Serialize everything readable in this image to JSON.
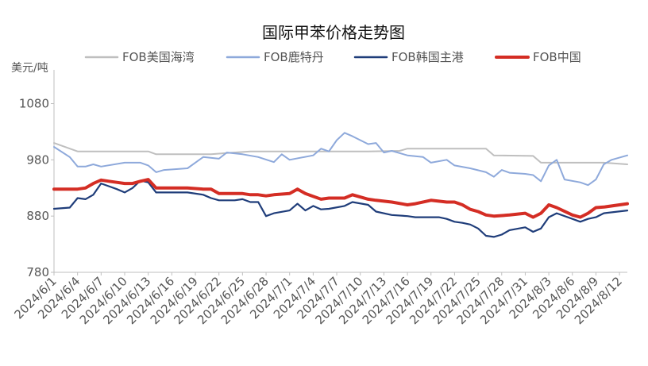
{
  "chart_data": {
    "type": "line",
    "title": "国际甲苯价格走势图",
    "ylabel": "美元/吨",
    "xlabel": "",
    "ylim": [
      780,
      1140
    ],
    "yticks": [
      780,
      880,
      980,
      1080
    ],
    "grid": false,
    "legend_position": "top",
    "x_tick_labels": [
      "2024/6/1",
      "2024/6/4",
      "2024/6/7",
      "2024/6/10",
      "2024/6/13",
      "2024/6/16",
      "2024/6/19",
      "2024/6/22",
      "2024/6/25",
      "2024/6/28",
      "2024/7/1",
      "2024/7/4",
      "2024/7/7",
      "2024/7/10",
      "2024/7/13",
      "2024/7/16",
      "2024/7/19",
      "2024/7/22",
      "2024/7/25",
      "2024/7/28",
      "2024/7/31",
      "2024/8/3",
      "2024/8/6",
      "2024/8/9",
      "2024/8/12"
    ],
    "x_days": [
      0,
      3,
      6,
      9,
      12,
      15,
      18,
      21,
      24,
      27,
      30,
      33,
      36,
      39,
      42,
      45,
      48,
      51,
      54,
      57,
      60,
      63,
      66,
      69,
      72
    ],
    "series": [
      {
        "name": "FOB美国海湾",
        "color": "#bfbfbf",
        "points": [
          [
            0,
            1010
          ],
          [
            3,
            995
          ],
          [
            6,
            995
          ],
          [
            9,
            995
          ],
          [
            12,
            995
          ],
          [
            13,
            990
          ],
          [
            16,
            990
          ],
          [
            20,
            990
          ],
          [
            22,
            992
          ],
          [
            25,
            995
          ],
          [
            32,
            995
          ],
          [
            40,
            995
          ],
          [
            44,
            996
          ],
          [
            45,
            1000
          ],
          [
            50,
            1000
          ],
          [
            51,
            1000
          ],
          [
            55,
            1000
          ],
          [
            56,
            988
          ],
          [
            61,
            987
          ],
          [
            62,
            975
          ],
          [
            70,
            975
          ],
          [
            73,
            972
          ]
        ]
      },
      {
        "name": "FOB鹿特丹",
        "color": "#8ea9db",
        "points": [
          [
            0,
            1003
          ],
          [
            2,
            985
          ],
          [
            3,
            968
          ],
          [
            4,
            968
          ],
          [
            5,
            972
          ],
          [
            6,
            968
          ],
          [
            9,
            975
          ],
          [
            11,
            975
          ],
          [
            12,
            970
          ],
          [
            13,
            958
          ],
          [
            14,
            962
          ],
          [
            17,
            965
          ],
          [
            19,
            985
          ],
          [
            21,
            982
          ],
          [
            22,
            993
          ],
          [
            24,
            990
          ],
          [
            26,
            985
          ],
          [
            28,
            976
          ],
          [
            29,
            990
          ],
          [
            30,
            980
          ],
          [
            33,
            988
          ],
          [
            34,
            1000
          ],
          [
            35,
            995
          ],
          [
            36,
            1015
          ],
          [
            37,
            1028
          ],
          [
            38,
            1022
          ],
          [
            40,
            1008
          ],
          [
            41,
            1010
          ],
          [
            42,
            993
          ],
          [
            43,
            996
          ],
          [
            45,
            988
          ],
          [
            47,
            985
          ],
          [
            48,
            975
          ],
          [
            50,
            980
          ],
          [
            51,
            970
          ],
          [
            53,
            965
          ],
          [
            55,
            958
          ],
          [
            56,
            950
          ],
          [
            57,
            962
          ],
          [
            58,
            957
          ],
          [
            60,
            955
          ],
          [
            61,
            953
          ],
          [
            62,
            942
          ],
          [
            63,
            970
          ],
          [
            64,
            980
          ],
          [
            65,
            945
          ],
          [
            67,
            940
          ],
          [
            68,
            935
          ],
          [
            69,
            945
          ],
          [
            70,
            972
          ],
          [
            71,
            980
          ],
          [
            73,
            988
          ]
        ]
      },
      {
        "name": "FOB韩国主港",
        "color": "#1f3d7a",
        "points": [
          [
            0,
            893
          ],
          [
            2,
            895
          ],
          [
            3,
            912
          ],
          [
            4,
            910
          ],
          [
            5,
            918
          ],
          [
            6,
            938
          ],
          [
            7,
            933
          ],
          [
            8,
            928
          ],
          [
            9,
            922
          ],
          [
            10,
            930
          ],
          [
            11,
            943
          ],
          [
            12,
            940
          ],
          [
            13,
            922
          ],
          [
            14,
            922
          ],
          [
            17,
            922
          ],
          [
            19,
            918
          ],
          [
            20,
            912
          ],
          [
            21,
            908
          ],
          [
            23,
            908
          ],
          [
            24,
            910
          ],
          [
            25,
            905
          ],
          [
            26,
            905
          ],
          [
            27,
            880
          ],
          [
            28,
            885
          ],
          [
            30,
            890
          ],
          [
            31,
            902
          ],
          [
            32,
            890
          ],
          [
            33,
            898
          ],
          [
            34,
            892
          ],
          [
            35,
            893
          ],
          [
            37,
            898
          ],
          [
            38,
            905
          ],
          [
            40,
            900
          ],
          [
            41,
            888
          ],
          [
            43,
            882
          ],
          [
            45,
            880
          ],
          [
            46,
            878
          ],
          [
            49,
            878
          ],
          [
            50,
            875
          ],
          [
            51,
            870
          ],
          [
            52,
            868
          ],
          [
            53,
            865
          ],
          [
            54,
            858
          ],
          [
            55,
            845
          ],
          [
            56,
            843
          ],
          [
            57,
            847
          ],
          [
            58,
            855
          ],
          [
            60,
            860
          ],
          [
            61,
            852
          ],
          [
            62,
            858
          ],
          [
            63,
            878
          ],
          [
            64,
            885
          ],
          [
            66,
            875
          ],
          [
            67,
            870
          ],
          [
            68,
            875
          ],
          [
            69,
            878
          ],
          [
            70,
            885
          ],
          [
            73,
            890
          ]
        ]
      },
      {
        "name": "FOB中国",
        "color": "#d42d24",
        "points": [
          [
            0,
            928
          ],
          [
            3,
            928
          ],
          [
            4,
            930
          ],
          [
            5,
            938
          ],
          [
            6,
            944
          ],
          [
            7,
            942
          ],
          [
            8,
            940
          ],
          [
            9,
            938
          ],
          [
            10,
            938
          ],
          [
            11,
            942
          ],
          [
            12,
            945
          ],
          [
            13,
            930
          ],
          [
            14,
            930
          ],
          [
            17,
            930
          ],
          [
            19,
            928
          ],
          [
            20,
            928
          ],
          [
            21,
            920
          ],
          [
            23,
            920
          ],
          [
            24,
            920
          ],
          [
            25,
            918
          ],
          [
            26,
            918
          ],
          [
            27,
            916
          ],
          [
            28,
            918
          ],
          [
            30,
            920
          ],
          [
            31,
            928
          ],
          [
            32,
            920
          ],
          [
            33,
            915
          ],
          [
            34,
            910
          ],
          [
            35,
            912
          ],
          [
            37,
            912
          ],
          [
            38,
            918
          ],
          [
            40,
            910
          ],
          [
            41,
            908
          ],
          [
            43,
            905
          ],
          [
            45,
            900
          ],
          [
            46,
            902
          ],
          [
            48,
            908
          ],
          [
            50,
            905
          ],
          [
            51,
            905
          ],
          [
            52,
            900
          ],
          [
            53,
            892
          ],
          [
            54,
            888
          ],
          [
            55,
            882
          ],
          [
            56,
            880
          ],
          [
            58,
            882
          ],
          [
            60,
            885
          ],
          [
            61,
            878
          ],
          [
            62,
            885
          ],
          [
            63,
            900
          ],
          [
            64,
            895
          ],
          [
            66,
            882
          ],
          [
            67,
            878
          ],
          [
            68,
            885
          ],
          [
            69,
            895
          ],
          [
            70,
            896
          ],
          [
            73,
            902
          ]
        ]
      }
    ]
  }
}
